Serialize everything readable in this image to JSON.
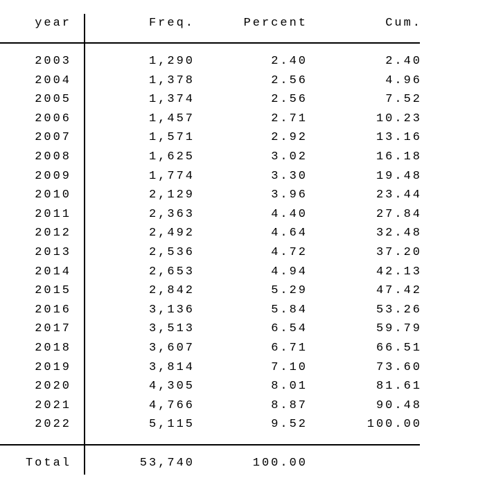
{
  "table": {
    "header": [
      "year",
      "Freq.",
      "Percent",
      "Cum."
    ],
    "rows": [
      [
        "2003",
        "1,290",
        "2.40",
        "2.40"
      ],
      [
        "2004",
        "1,378",
        "2.56",
        "4.96"
      ],
      [
        "2005",
        "1,374",
        "2.56",
        "7.52"
      ],
      [
        "2006",
        "1,457",
        "2.71",
        "10.23"
      ],
      [
        "2007",
        "1,571",
        "2.92",
        "13.16"
      ],
      [
        "2008",
        "1,625",
        "3.02",
        "16.18"
      ],
      [
        "2009",
        "1,774",
        "3.30",
        "19.48"
      ],
      [
        "2010",
        "2,129",
        "3.96",
        "23.44"
      ],
      [
        "2011",
        "2,363",
        "4.40",
        "27.84"
      ],
      [
        "2012",
        "2,492",
        "4.64",
        "32.48"
      ],
      [
        "2013",
        "2,536",
        "4.72",
        "37.20"
      ],
      [
        "2014",
        "2,653",
        "4.94",
        "42.13"
      ],
      [
        "2015",
        "2,842",
        "5.29",
        "47.42"
      ],
      [
        "2016",
        "3,136",
        "5.84",
        "53.26"
      ],
      [
        "2017",
        "3,513",
        "6.54",
        "59.79"
      ],
      [
        "2018",
        "3,607",
        "6.71",
        "66.51"
      ],
      [
        "2019",
        "3,814",
        "7.10",
        "73.60"
      ],
      [
        "2020",
        "4,305",
        "8.01",
        "81.61"
      ],
      [
        "2021",
        "4,766",
        "8.87",
        "90.48"
      ],
      [
        "2022",
        "5,115",
        "9.52",
        "100.00"
      ]
    ],
    "total": [
      "Total",
      "53,740",
      "100.00"
    ]
  }
}
